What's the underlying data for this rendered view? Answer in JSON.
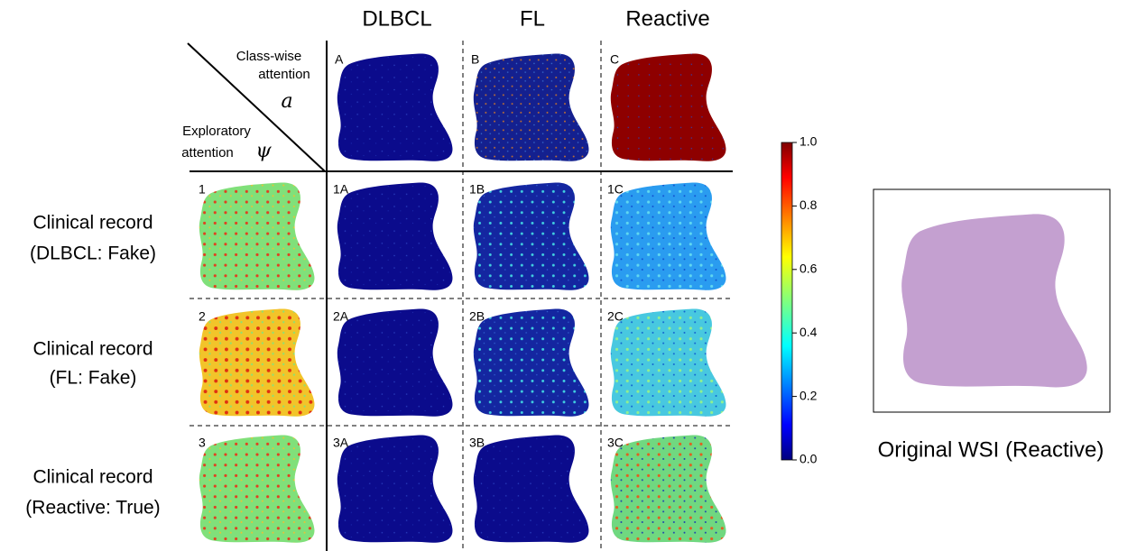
{
  "columns": [
    "DLBCL",
    "FL",
    "Reactive"
  ],
  "corner": {
    "class_wise": [
      "Class-wise",
      "attention"
    ],
    "class_symbol": "a",
    "exploratory": [
      "Exploratory",
      "attention"
    ],
    "exploratory_symbol": "ψ"
  },
  "top_cells": [
    "A",
    "B",
    "C"
  ],
  "rows": [
    {
      "label": [
        "Clinical record",
        "(DLBCL: Fake)"
      ],
      "index": "1",
      "cells": [
        "1A",
        "1B",
        "1C"
      ]
    },
    {
      "label": [
        "Clinical record",
        "(FL: Fake)"
      ],
      "index": "2",
      "cells": [
        "2A",
        "2B",
        "2C"
      ]
    },
    {
      "label": [
        "Clinical record",
        "(Reactive: True)"
      ],
      "index": "3",
      "cells": [
        "3A",
        "3B",
        "3C"
      ]
    }
  ],
  "colorbar": {
    "ticks": [
      "0.0",
      "0.2",
      "0.4",
      "0.6",
      "0.8",
      "1.0"
    ]
  },
  "wsi_caption": "Original WSI (Reactive)"
}
